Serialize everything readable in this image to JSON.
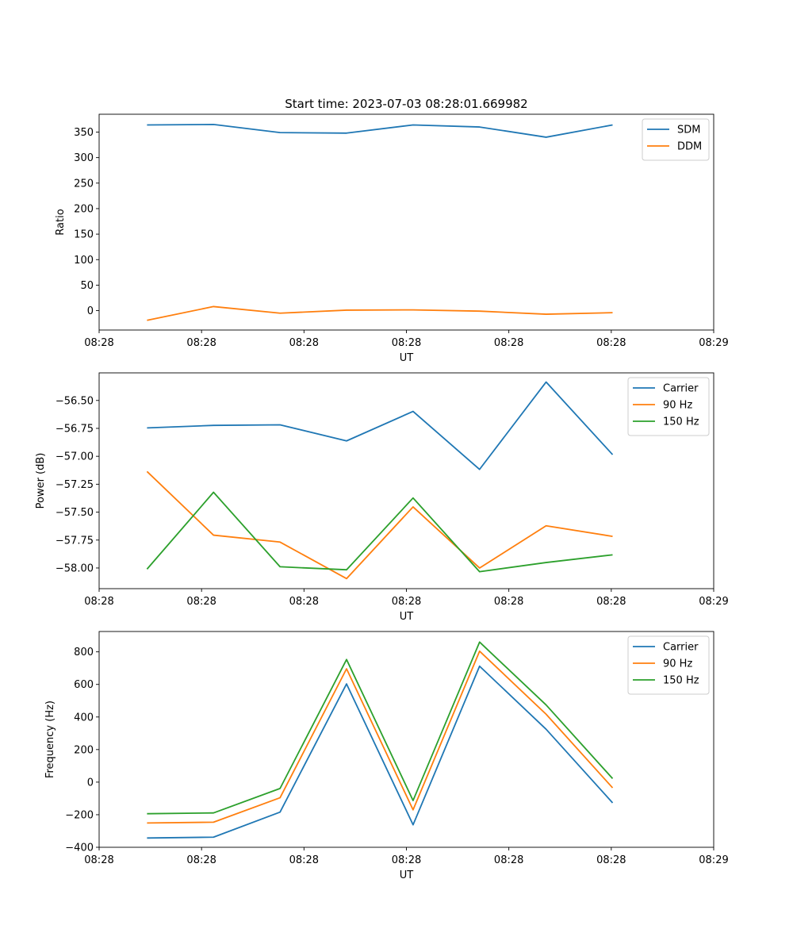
{
  "figure_title": "Start time: 2023-07-03 08:28:01.669982",
  "colors": {
    "c0": "#1f77b4",
    "c1": "#ff7f0e",
    "c2": "#2ca02c"
  },
  "chart_data": [
    {
      "type": "line",
      "title": "Start time: 2023-07-03 08:28:01.669982",
      "xlabel": "UT",
      "ylabel": "Ratio",
      "x": [
        0,
        1,
        2,
        3,
        4,
        5,
        6,
        7
      ],
      "xlim": [
        -0.72,
        8.52
      ],
      "ylim": [
        -38,
        385
      ],
      "xticks": [
        -0.72,
        0.82,
        2.36,
        3.9,
        5.44,
        6.98,
        8.52
      ],
      "xtick_labels": [
        "08:28",
        "08:28",
        "08:28",
        "08:28",
        "08:28",
        "08:28",
        "08:29"
      ],
      "yticks": [
        0,
        50,
        100,
        150,
        200,
        250,
        300,
        350
      ],
      "ytick_labels": [
        "0",
        "50",
        "100",
        "150",
        "200",
        "250",
        "300",
        "350"
      ],
      "legend_position": "upper-right",
      "series": [
        {
          "name": "SDM",
          "color": "#1f77b4",
          "values": [
            364,
            365,
            349,
            348,
            364,
            360,
            340,
            364
          ]
        },
        {
          "name": "DDM",
          "color": "#ff7f0e",
          "values": [
            -19,
            8,
            -5,
            1,
            1.5,
            -1,
            -7,
            -4
          ]
        }
      ]
    },
    {
      "type": "line",
      "xlabel": "UT",
      "ylabel": "Power (dB)",
      "x": [
        0,
        1,
        2,
        3,
        4,
        5,
        6,
        7
      ],
      "xlim": [
        -0.72,
        8.52
      ],
      "ylim": [
        -58.185,
        -56.253
      ],
      "xticks": [
        -0.72,
        0.82,
        2.36,
        3.9,
        5.44,
        6.98,
        8.52
      ],
      "xtick_labels": [
        "08:28",
        "08:28",
        "08:28",
        "08:28",
        "08:28",
        "08:28",
        "08:29"
      ],
      "yticks": [
        -58.0,
        -57.75,
        -57.5,
        -57.25,
        -57.0,
        -56.75,
        -56.5
      ],
      "ytick_labels": [
        "−58.00",
        "−57.75",
        "−57.50",
        "−57.25",
        "−57.00",
        "−56.75",
        "−56.50"
      ],
      "legend_position": "upper-right",
      "series": [
        {
          "name": "Carrier",
          "color": "#1f77b4",
          "values": [
            -56.746,
            -56.723,
            -56.718,
            -56.862,
            -56.598,
            -57.117,
            -56.335,
            -56.985
          ]
        },
        {
          "name": "90 Hz",
          "color": "#ff7f0e",
          "values": [
            -57.136,
            -57.706,
            -57.768,
            -58.095,
            -57.453,
            -58.0,
            -57.622,
            -57.717
          ]
        },
        {
          "name": "150 Hz",
          "color": "#2ca02c",
          "values": [
            -58.01,
            -57.322,
            -57.989,
            -58.016,
            -57.373,
            -58.033,
            -57.951,
            -57.882
          ]
        }
      ]
    },
    {
      "type": "line",
      "xlabel": "UT",
      "ylabel": "Frequency (Hz)",
      "x": [
        0,
        1,
        2,
        3,
        4,
        5,
        6,
        7
      ],
      "xlim": [
        -0.72,
        8.52
      ],
      "ylim": [
        -400,
        925
      ],
      "xticks": [
        -0.72,
        0.82,
        2.36,
        3.9,
        5.44,
        6.98,
        8.52
      ],
      "xtick_labels": [
        "08:28",
        "08:28",
        "08:28",
        "08:28",
        "08:28",
        "08:28",
        "08:29"
      ],
      "yticks": [
        -400,
        -200,
        0,
        200,
        400,
        600,
        800
      ],
      "ytick_labels": [
        "−400",
        "−200",
        "0",
        "200",
        "400",
        "600",
        "800"
      ],
      "legend_position": "upper-right",
      "series": [
        {
          "name": "Carrier",
          "color": "#1f77b4",
          "values": [
            -343,
            -338,
            -184,
            603,
            -262,
            712,
            325,
            -127
          ]
        },
        {
          "name": "90 Hz",
          "color": "#ff7f0e",
          "values": [
            -251,
            -246,
            -96,
            696,
            -170,
            804,
            417,
            -35
          ]
        },
        {
          "name": "150 Hz",
          "color": "#2ca02c",
          "values": [
            -194,
            -189,
            -39,
            753,
            -113,
            860,
            474,
            22
          ]
        }
      ]
    }
  ]
}
